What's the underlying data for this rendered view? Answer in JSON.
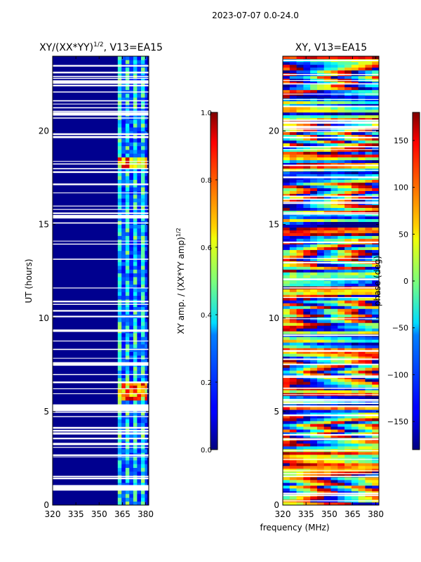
{
  "figure_title": "2023-07-07 0.0-24.0",
  "shared_xlabel": "frequency (MHz)",
  "chart_data": [
    {
      "type": "heatmap",
      "title": "XY/(XX*YY)^1/2, V13=EA15",
      "title_main": "XY/(XX*YY)",
      "title_sup": "1/2",
      "title_tail": ", V13=EA15",
      "xlabel": "frequency (MHz)",
      "ylabel": "UT (hours)",
      "xlim": [
        320,
        382
      ],
      "ylim": [
        0,
        24
      ],
      "xticks": [
        320,
        335,
        350,
        365,
        380
      ],
      "yticks": [
        0,
        5,
        10,
        15,
        20
      ],
      "colorbar": {
        "label_main": "XY amp. / (XX*YY amp)",
        "label_sup": "1/2",
        "range": [
          0.0,
          1.0
        ],
        "ticks": [
          "0.0",
          "0.2",
          "0.4",
          "0.6",
          "0.8",
          "1.0"
        ],
        "colormap": "jet"
      },
      "flagged_hours": [
        0.85,
        0.9,
        5.1,
        5.2,
        15.4,
        20.9,
        22.6
      ],
      "bright_bands_hours": [
        5.5,
        6.5,
        17.9,
        18.5
      ],
      "active_freq_range_mhz": [
        360,
        382
      ]
    },
    {
      "type": "heatmap",
      "title": "XY, V13=EA15",
      "xlabel": "frequency (MHz)",
      "ylabel": "",
      "xlim": [
        320,
        382
      ],
      "ylim": [
        0,
        24
      ],
      "xticks": [
        320,
        335,
        350,
        365,
        380
      ],
      "yticks": [
        0,
        5,
        10,
        15,
        20
      ],
      "colorbar": {
        "label": "phase (deg)",
        "range": [
          -180,
          180
        ],
        "ticks": [
          "150",
          "100",
          "50",
          "0",
          "−50",
          "−100",
          "−150"
        ],
        "tick_values": [
          150,
          100,
          50,
          0,
          -50,
          -100,
          -150
        ],
        "colormap": "jet"
      }
    }
  ]
}
